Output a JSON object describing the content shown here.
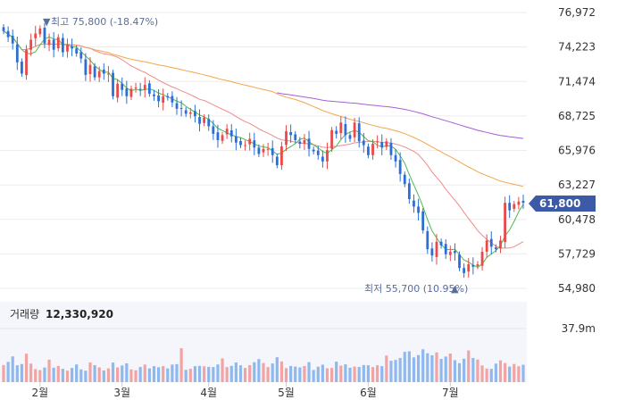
{
  "chart_data": {
    "type": "candlestick",
    "price_axis": {
      "ticks": [
        "76,972",
        "74,223",
        "71,474",
        "68,725",
        "65,976",
        "63,227",
        "60,478",
        "57,729",
        "54,980"
      ],
      "values": [
        76972,
        74223,
        71474,
        68725,
        65976,
        63227,
        60478,
        57729,
        54980
      ]
    },
    "volume_axis": {
      "ticks": [
        "37.9m"
      ],
      "values": [
        37900000
      ]
    },
    "x_labels": [
      "2월",
      "3월",
      "4월",
      "5월",
      "6월",
      "7월"
    ],
    "current_price": {
      "label": "61,800",
      "value": 61800
    },
    "high_annotation": {
      "label": "최고 75,800 (-18.47%)",
      "value": 75800
    },
    "low_annotation": {
      "label": "최저 55,700 (10.95%)",
      "value": 55700
    },
    "volume_caption": {
      "title": "거래량",
      "value": "12,330,920"
    },
    "colors": {
      "up": "#e84a4a",
      "down": "#2b6fd6",
      "ma5": "#4cbb4c",
      "ma20": "#f08a8a",
      "ma60": "#f5a64a",
      "ma120": "#a65ed8",
      "vol_up": "#f2a3a3",
      "vol_down": "#8fb8ee",
      "badge": "#3d5aa6"
    },
    "closes": [
      75500,
      75000,
      74500,
      73000,
      72100,
      74000,
      74800,
      75300,
      75700,
      74500,
      74800,
      74000,
      75000,
      73800,
      74400,
      74100,
      73700,
      73300,
      72000,
      72800,
      71800,
      72300,
      72100,
      72100,
      70300,
      71300,
      70800,
      70300,
      70900,
      71000,
      70800,
      71200,
      70500,
      70300,
      69900,
      70300,
      70200,
      69800,
      69300,
      69300,
      68900,
      69000,
      68700,
      68100,
      68600,
      67900,
      67300,
      66800,
      67200,
      67700,
      67100,
      66600,
      66400,
      66400,
      66900,
      66200,
      65700,
      66100,
      66100,
      65600,
      64800,
      66300,
      67500,
      67200,
      66800,
      66500,
      66800,
      66100,
      65900,
      65600,
      65100,
      66000,
      67600,
      67300,
      68200,
      67200,
      66900,
      68200,
      66700,
      66400,
      65600,
      66500,
      66700,
      66200,
      66700,
      65600,
      65100,
      64100,
      63300,
      62100,
      61500,
      61000,
      59600,
      58100,
      57600,
      58700,
      58400,
      57700,
      57900,
      57800,
      56600,
      56200,
      56900,
      56700,
      56900,
      57900,
      58800,
      58300,
      58100,
      58800,
      61800,
      61200,
      61700,
      61900,
      61800
    ],
    "volumes": [
      12.1,
      14.3,
      18.2,
      11.9,
      12.8,
      20.1,
      13.1,
      9.2,
      8.5,
      10.3,
      15.9,
      10.2,
      11.4,
      9.4,
      8.1,
      10.0,
      12.5,
      9.0,
      8.1,
      13.9,
      12.0,
      10.4,
      8.3,
      9.7,
      13.8,
      10.4,
      11.8,
      13.3,
      9.0,
      8.4,
      10.7,
      12.4,
      9.7,
      11.3,
      10.5,
      11.3,
      9.7,
      12.4,
      12.7,
      24.0,
      8.7,
      9.4,
      11.3,
      11.5,
      11.2,
      10.8,
      10.7,
      12.5,
      16.8,
      10.6,
      11.5,
      13.9,
      11.9,
      10.0,
      12.0,
      14.1,
      16.3,
      13.5,
      10.6,
      13.2,
      17.6,
      14.6,
      9.9,
      11.4,
      11.0,
      10.4,
      11.4,
      14.1,
      8.6,
      10.9,
      12.3,
      9.8,
      10.0,
      14.5,
      11.7,
      12.6,
      10.2,
      11.0,
      10.7,
      12.1,
      11.9,
      10.6,
      11.9,
      11.3,
      18.8,
      15.1,
      15.7,
      17.1,
      21.4,
      21.8,
      17.5,
      19.1,
      23.2,
      20.4,
      19.0,
      21.0,
      16.4,
      18.1,
      20.2,
      15.5,
      13.4,
      16.5,
      22.4,
      17.1,
      16.0,
      11.8,
      9.6,
      9.4,
      13.1,
      15.4,
      13.5,
      11.0,
      12.8,
      11.2,
      12.3
    ]
  }
}
